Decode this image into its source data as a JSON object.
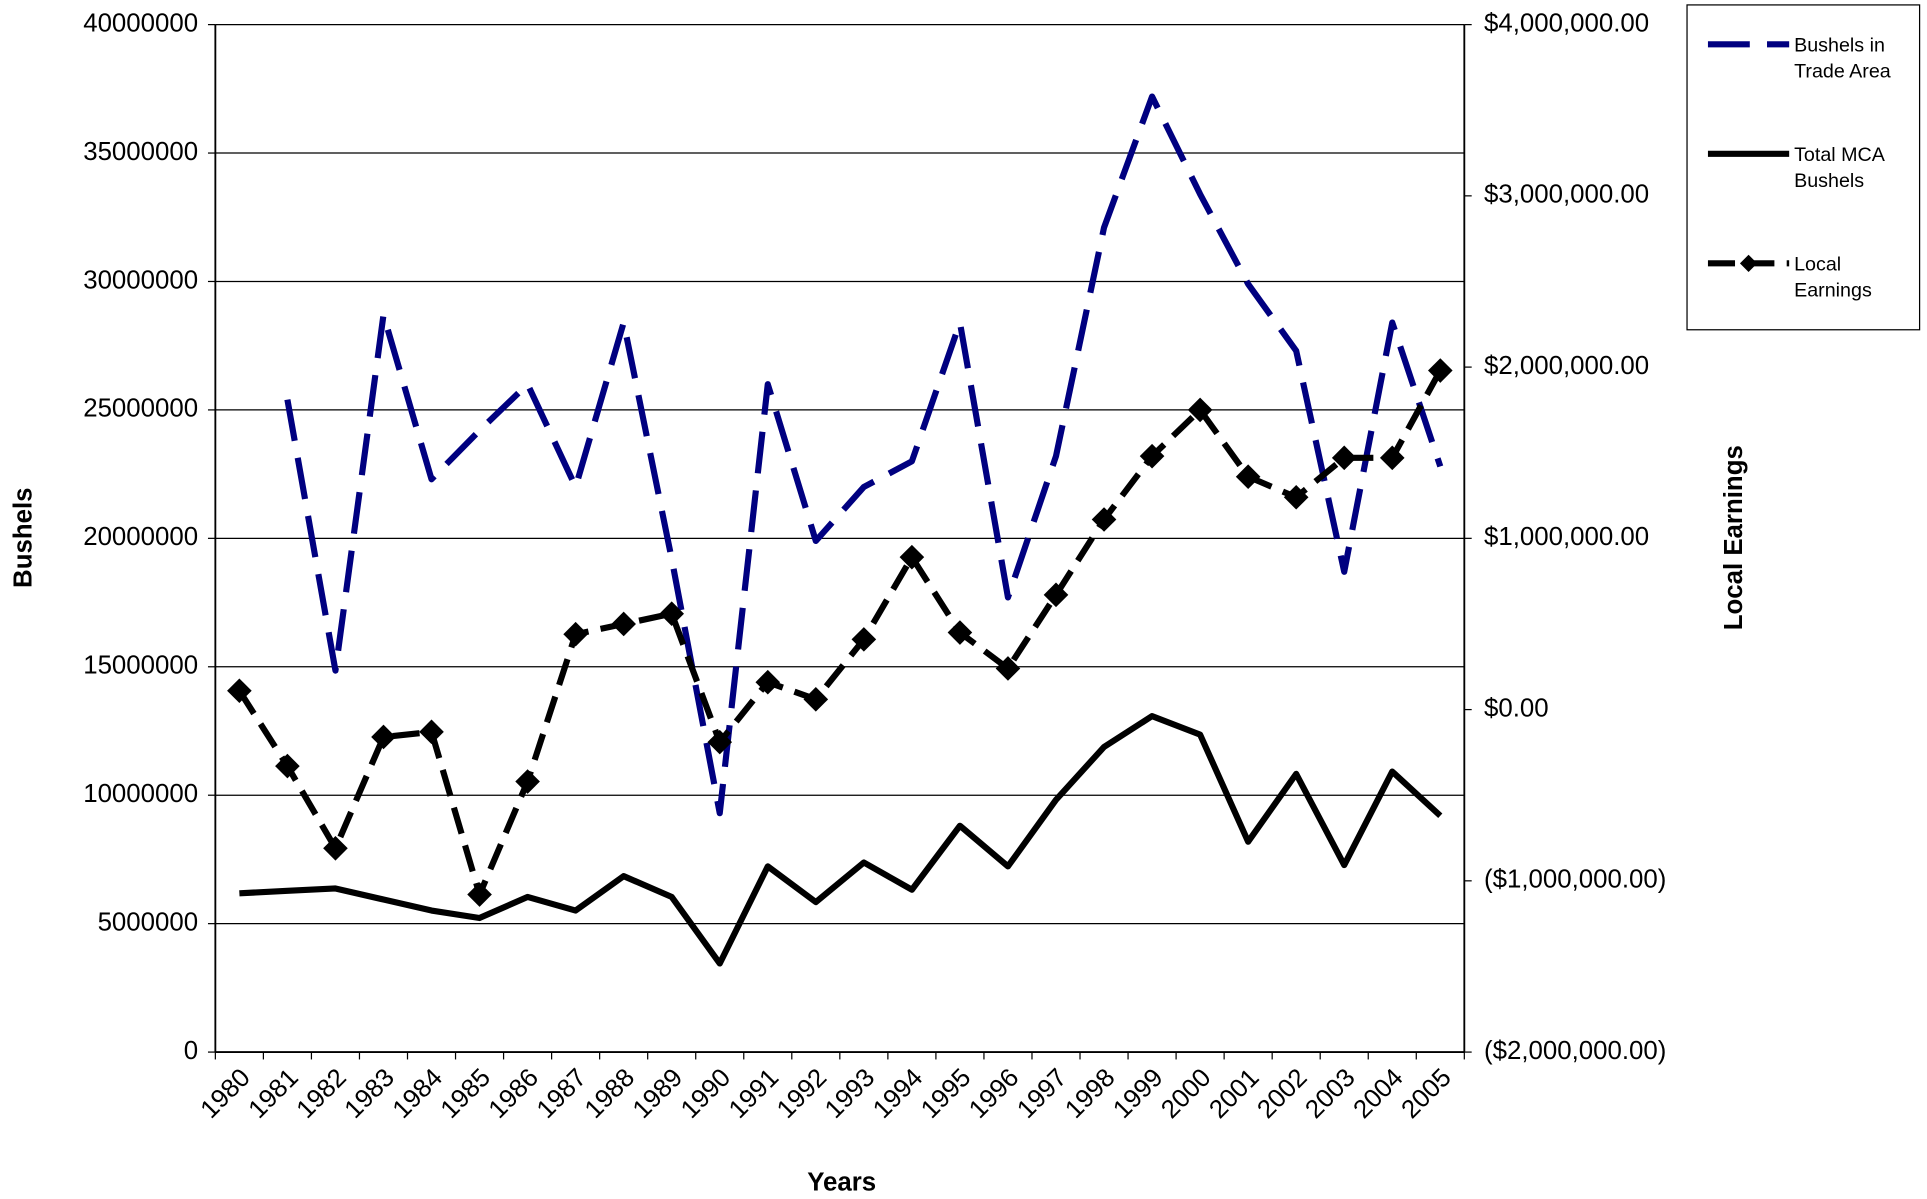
{
  "chart_data": {
    "type": "line",
    "x_label": "Years",
    "y_label": "Bushels",
    "y2_label": "Local Earnings",
    "categories": [
      "1980",
      "1981",
      "1982",
      "1983",
      "1984",
      "1985",
      "1986",
      "1987",
      "1988",
      "1989",
      "1990",
      "1991",
      "1992",
      "1993",
      "1994",
      "1995",
      "1996",
      "1997",
      "1998",
      "1999",
      "2000",
      "2001",
      "2002",
      "2003",
      "2004",
      "2005"
    ],
    "series": [
      {
        "name": "Bushels in Trade Area",
        "color": "#000080",
        "style": "dashed",
        "values": [
          null,
          25400000,
          14850000,
          28700000,
          22300000,
          24200000,
          26000000,
          22000000,
          28400000,
          19200000,
          9300000,
          26000000,
          19900000,
          22000000,
          23000000,
          28400000,
          17700000,
          23200000,
          32100000,
          37200000,
          33400000,
          29900000,
          27300000,
          18700000,
          28400000,
          22800000
        ]
      },
      {
        "name": "Total MCA Bushels",
        "color": "#000000",
        "style": "solid",
        "values": [
          6180000,
          6280000,
          6370000,
          5940000,
          5510000,
          5220000,
          6040000,
          5510000,
          6850000,
          6040000,
          3450000,
          7230000,
          5840000,
          7380000,
          6320000,
          8810000,
          7230000,
          9820000,
          11880000,
          13080000,
          12360000,
          8190000,
          10830000,
          7280000,
          10920000,
          9200000
        ]
      },
      {
        "name": "Local Earnings",
        "color": "#000000",
        "style": "dashed-diamond",
        "axis": "y2",
        "values": [
          110000,
          -330000,
          -810000,
          -160000,
          -130000,
          -1080000,
          -420000,
          440000,
          500000,
          560000,
          -190000,
          160000,
          60000,
          410000,
          890000,
          450000,
          240000,
          670000,
          1110000,
          1480000,
          1750000,
          1360000,
          1240000,
          1470000,
          1470000,
          1980000
        ]
      }
    ],
    "ylim": [
      0,
      40000000
    ],
    "yticks": [
      0,
      5000000,
      10000000,
      15000000,
      20000000,
      25000000,
      30000000,
      35000000,
      40000000
    ],
    "y2lim": [
      -2000000,
      4000000
    ],
    "y2ticks": [
      {
        "value": -2000000,
        "label": "($2,000,000.00)"
      },
      {
        "value": -1000000,
        "label": "($1,000,000.00)"
      },
      {
        "value": 0,
        "label": "$0.00"
      },
      {
        "value": 1000000,
        "label": "$1,000,000.00"
      },
      {
        "value": 2000000,
        "label": "$2,000,000.00"
      },
      {
        "value": 3000000,
        "label": "$3,000,000.00"
      },
      {
        "value": 4000000,
        "label": "$4,000,000.00"
      }
    ],
    "grid": true,
    "legend": "top-right"
  }
}
